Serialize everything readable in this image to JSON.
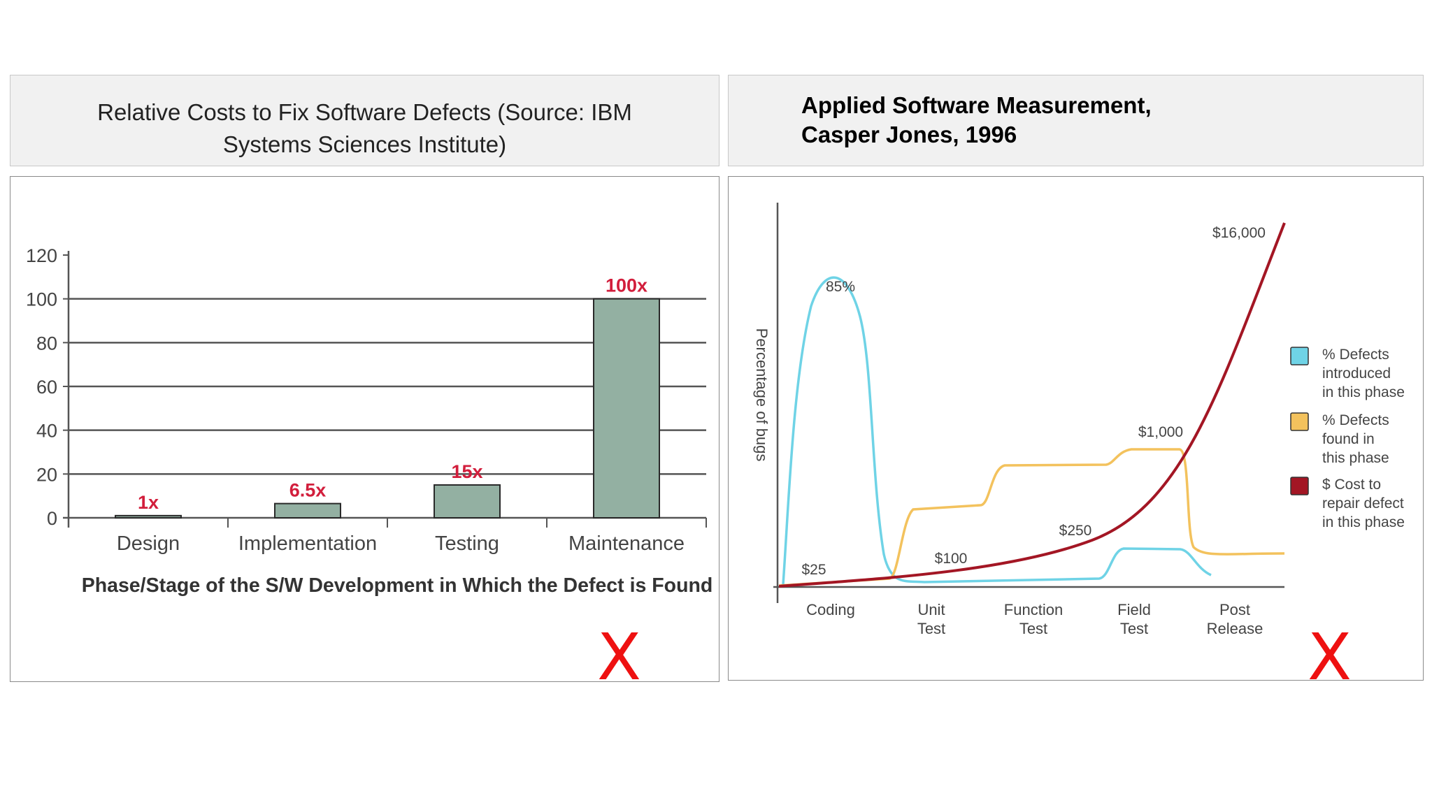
{
  "left_panel": {
    "title": "Relative Costs to Fix Software Defects (Source: IBM Systems Sciences Institute)",
    "mark": "X"
  },
  "right_panel": {
    "title_line1": "Applied Software Measurement,",
    "title_line2": "Casper Jones, 1996",
    "mark": "X"
  },
  "chart_data": [
    {
      "type": "bar",
      "title": "Relative Costs to Fix Software Defects (Source: IBM Systems Sciences Institute)",
      "categories": [
        "Design",
        "Implementation",
        "Testing",
        "Maintenance"
      ],
      "values": [
        1,
        6.5,
        15,
        100
      ],
      "data_labels": [
        "1x",
        "6.5x",
        "15x",
        "100x"
      ],
      "xlabel": "Phase/Stage of the S/W Development in Which the Defect is Found",
      "ylabel": "",
      "ylim": [
        0,
        120
      ],
      "yticks": [
        0,
        20,
        40,
        60,
        80,
        100,
        120
      ],
      "grid": true,
      "colors": {
        "bar": "#93b0a2",
        "bar_edge": "#2a2a2a",
        "label": "#d21e3c"
      }
    },
    {
      "type": "line",
      "categories": [
        "Coding",
        "Unit Test",
        "Function Test",
        "Field Test",
        "Post Release"
      ],
      "tick_labels": [
        [
          "Coding"
        ],
        [
          "Unit",
          "Test"
        ],
        [
          "Function",
          "Test"
        ],
        [
          "Field",
          "Test"
        ],
        [
          "Post",
          "Release"
        ]
      ],
      "ylabel": "Percentage of bugs",
      "series": [
        {
          "name": "% Defects introduced in this phase",
          "legend_lines": [
            "% Defects",
            "introduced",
            "in this phase"
          ],
          "color": "#6fd3e6",
          "peak_label": "85%"
        },
        {
          "name": "% Defects found in this phase",
          "legend_lines": [
            "% Defects",
            "found in",
            "this phase"
          ],
          "color": "#f3c25d"
        },
        {
          "name": "$ Cost to repair defect in this phase",
          "legend_lines": [
            "$ Cost to",
            "repair defect",
            "in this phase"
          ],
          "color": "#a31624",
          "cost_labels": [
            "$25",
            "$100",
            "$250",
            "$1,000",
            "$16,000"
          ]
        }
      ],
      "legend": "right",
      "grid": false
    }
  ]
}
